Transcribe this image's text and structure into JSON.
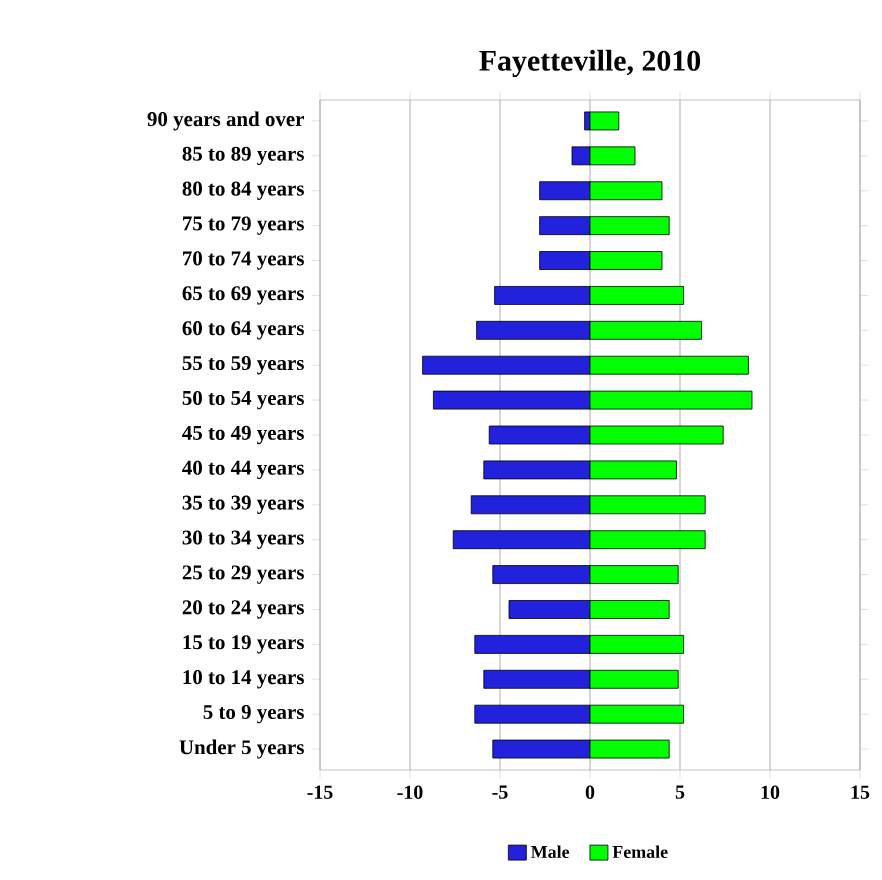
{
  "chart_data": {
    "type": "bar",
    "orientation": "horizontal",
    "title": "Fayetteville, 2010",
    "categories": [
      "90 years and over",
      "85 to 89 years",
      "80 to 84 years",
      "75 to 79 years",
      "70 to 74 years",
      "65 to 69 years",
      "60 to 64 years",
      "55 to 59 years",
      "50 to 54 years",
      "45 to 49 years",
      "40 to 44 years",
      "35 to 39 years",
      "30 to 34 years",
      "25 to 29 years",
      "20 to 24 years",
      "15 to 19 years",
      "10 to 14 years",
      "5 to 9 years",
      "Under 5 years"
    ],
    "series": [
      {
        "name": "Male",
        "color": "#2222dd",
        "values": [
          -0.3,
          -1.0,
          -2.8,
          -2.8,
          -2.8,
          -5.3,
          -6.3,
          -9.3,
          -8.7,
          -5.6,
          -5.9,
          -6.6,
          -7.6,
          -5.4,
          -4.5,
          -6.4,
          -5.9,
          -6.4,
          -5.4
        ]
      },
      {
        "name": "Female",
        "color": "#00ff00",
        "values": [
          1.6,
          2.5,
          4.0,
          4.4,
          4.0,
          5.2,
          6.2,
          8.8,
          9.0,
          7.4,
          4.8,
          6.4,
          6.4,
          4.9,
          4.4,
          5.2,
          4.9,
          5.2,
          4.4
        ]
      }
    ],
    "xlim": [
      -15,
      15
    ],
    "xticks": [
      -15,
      -10,
      -5,
      0,
      5,
      10,
      15
    ],
    "grid": "x",
    "legend": "bottom",
    "stacked": true
  }
}
